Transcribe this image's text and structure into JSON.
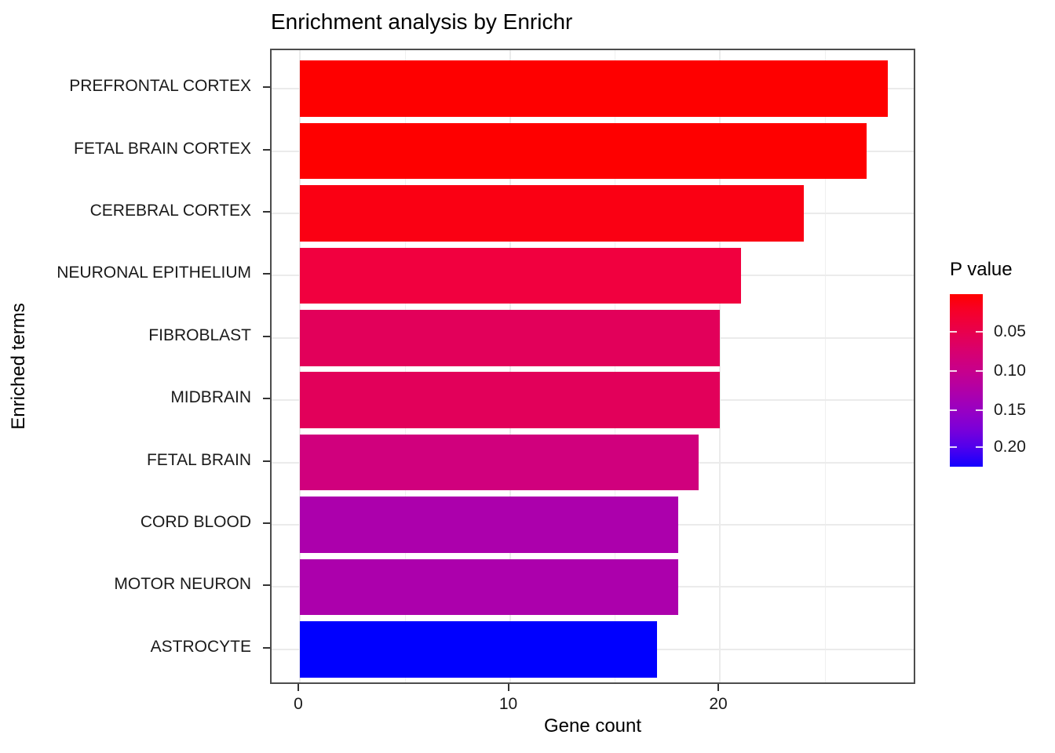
{
  "figure": {
    "title": "Enrichment analysis by Enrichr"
  },
  "chart_data": {
    "type": "bar",
    "orientation": "horizontal",
    "title": "Enrichment analysis by Enrichr",
    "xlabel": "Gene count",
    "ylabel": "Enriched terms",
    "categories": [
      "PREFRONTAL CORTEX",
      "FETAL BRAIN CORTEX",
      "CEREBRAL CORTEX",
      "NEURONAL EPITHELIUM",
      "FIBROBLAST",
      "MIDBRAIN",
      "FETAL BRAIN",
      "CORD BLOOD",
      "MOTOR NEURON",
      "ASTROCYTE"
    ],
    "values": [
      28,
      27,
      24,
      21,
      20,
      20,
      19,
      18,
      18,
      17
    ],
    "bar_colors": [
      "#FE0000",
      "#FE0000",
      "#FA0013",
      "#F1003F",
      "#E2005A",
      "#E2005A",
      "#D0007D",
      "#AC00AC",
      "#AC00AC",
      "#0000FF"
    ],
    "x_ticks": [
      0,
      10,
      20
    ],
    "x_tick_labels": [
      "0",
      "10",
      "20"
    ],
    "x_minor_ticks": [
      5,
      15,
      25
    ],
    "x_range": [
      -1.4,
      29.4
    ],
    "grid": true,
    "panel_border": true,
    "style_colors": {
      "gridline": "#EBEBEB",
      "panel_border": "#4D4D4D",
      "tick_mark": "#333333",
      "tick_text": "#1A1A1A"
    },
    "legend": {
      "title": "P value",
      "position": "right",
      "type": "colorbar-gradient",
      "gradient_top_color": "#FF0000",
      "gradient_bottom_color": "#1400FF",
      "tick_labels": [
        "0.05",
        "0.10",
        "0.15",
        "0.20"
      ]
    }
  }
}
